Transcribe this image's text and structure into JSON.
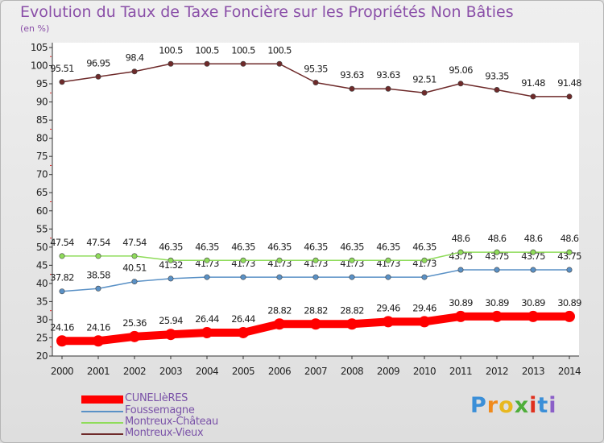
{
  "title": "Evolution du Taux de Taxe Foncière sur les Propriétés Non Bâties",
  "unit": "(en %)",
  "brand": "Proxiti",
  "chart_data": {
    "type": "line",
    "x": [
      "2000",
      "2001",
      "2002",
      "2003",
      "2004",
      "2005",
      "2006",
      "2007",
      "2008",
      "2009",
      "2010",
      "2011",
      "2012",
      "2013",
      "2014"
    ],
    "ylim": [
      20,
      105
    ],
    "yticks": [
      20,
      25,
      30,
      35,
      40,
      45,
      50,
      55,
      60,
      65,
      70,
      75,
      80,
      85,
      90,
      95,
      100,
      105
    ],
    "grid": false,
    "legend_position": "bottom-left",
    "series": [
      {
        "name": "CUNELIèRES",
        "color": "#ff0000",
        "values": [
          24.16,
          24.16,
          25.36,
          25.94,
          26.44,
          26.44,
          28.82,
          28.82,
          28.82,
          29.46,
          29.46,
          30.89,
          30.89,
          30.89,
          30.89
        ],
        "labels": [
          "24.16",
          "24.16",
          "25.36",
          "25.94",
          "26.44",
          "26.44",
          "28.82",
          "28.82",
          "28.82",
          "29.46",
          "29.46",
          "30.89",
          "30.89",
          "30.89",
          "30.89"
        ]
      },
      {
        "name": "Foussemagne",
        "color": "#5a91c6",
        "values": [
          37.82,
          38.58,
          40.51,
          41.32,
          41.73,
          41.73,
          41.73,
          41.73,
          41.73,
          41.73,
          41.73,
          43.75,
          43.75,
          43.75,
          43.75
        ],
        "labels": [
          "37.82",
          "38.58",
          "40.51",
          "41.32",
          "41.73",
          "41.73",
          "41.73",
          "41.73",
          "41.73",
          "41.73",
          "41.73",
          "43.75",
          "43.75",
          "43.75",
          "43.75"
        ]
      },
      {
        "name": "Montreux-Château",
        "color": "#8fdc5a",
        "values": [
          47.54,
          47.54,
          47.54,
          46.35,
          46.35,
          46.35,
          46.35,
          46.35,
          46.35,
          46.35,
          46.35,
          48.6,
          48.6,
          48.6,
          48.6
        ],
        "labels": [
          "47.54",
          "47.54",
          "47.54",
          "46.35",
          "46.35",
          "46.35",
          "46.35",
          "46.35",
          "46.35",
          "46.35",
          "46.35",
          "48.6",
          "48.6",
          "48.6",
          "48.6"
        ]
      },
      {
        "name": "Montreux-Vieux",
        "color": "#6e2a2a",
        "values": [
          95.51,
          96.95,
          98.4,
          100.5,
          100.5,
          100.5,
          100.5,
          95.35,
          93.63,
          93.63,
          92.51,
          95.06,
          93.35,
          91.48,
          91.48
        ],
        "labels": [
          "95.51",
          "96.95",
          "98.4",
          "100.5",
          "100.5",
          "100.5",
          "100.5",
          "95.35",
          "93.63",
          "93.63",
          "92.51",
          "95.06",
          "93.35",
          "91.48",
          "91.48"
        ]
      }
    ]
  }
}
